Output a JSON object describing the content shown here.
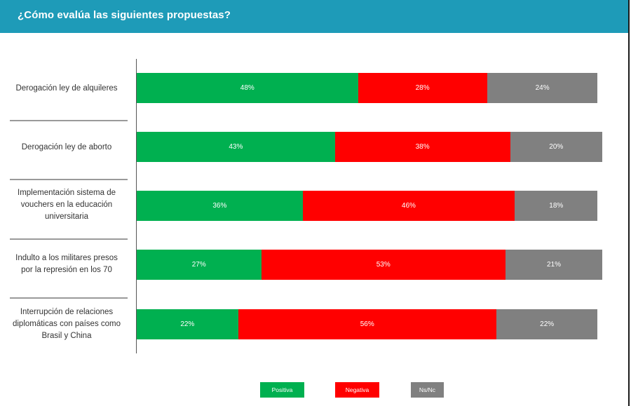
{
  "header": {
    "title": "¿Cómo evalúa las siguientes propuestas?"
  },
  "chart_data": {
    "type": "bar",
    "orientation": "horizontal",
    "stacked": true,
    "title": "¿Cómo evalúa las siguientes propuestas?",
    "categories": [
      [
        "Derogación ley de alquileres"
      ],
      [
        "Derogación ley de aborto"
      ],
      [
        "Implementación sistema de",
        "vouchers en la educación",
        "universitaria"
      ],
      [
        "Indulto a los militares presos",
        "por la represión en los 70"
      ],
      [
        "Interrupción de relaciones",
        "diplomáticas con países como",
        "Brasil y China"
      ]
    ],
    "series": [
      {
        "name": "Positiva",
        "color": "#00b050",
        "values": [
          48,
          43,
          36,
          27,
          22
        ]
      },
      {
        "name": "Negativa",
        "color": "#ff0000",
        "values": [
          28,
          38,
          46,
          53,
          56
        ]
      },
      {
        "name": "Ns/Nc",
        "color": "#808080",
        "values": [
          24,
          20,
          18,
          21,
          22
        ]
      }
    ],
    "value_suffix": "%",
    "legend_position": "bottom",
    "grid": false
  }
}
